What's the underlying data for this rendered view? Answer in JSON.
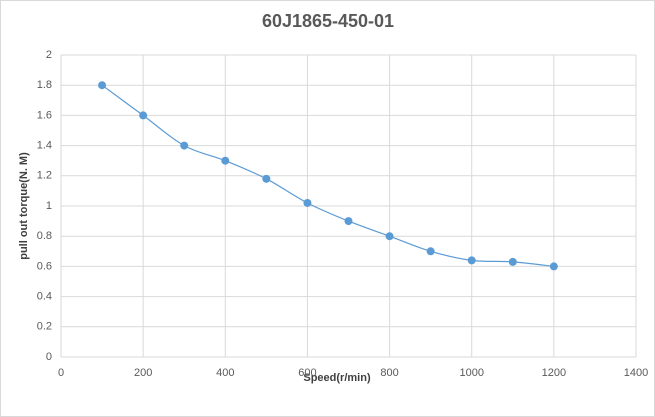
{
  "chart_data": {
    "type": "line",
    "title": "60J1865-450-01",
    "x_label": "Speed(r/min)",
    "y_label": "pull out torque(N. M)",
    "x": [
      100,
      200,
      300,
      400,
      500,
      600,
      700,
      800,
      900,
      1000,
      1100,
      1200
    ],
    "series": [
      {
        "name": "pull out torque",
        "color": "#5b9bd5",
        "values": [
          1.8,
          1.6,
          1.4,
          1.3,
          1.18,
          1.02,
          0.9,
          0.8,
          0.7,
          0.64,
          0.63,
          0.6
        ]
      }
    ],
    "xlim": [
      0,
      1400
    ],
    "xticks": [
      0,
      200,
      400,
      600,
      800,
      1000,
      1200,
      1400
    ],
    "ylim": [
      0,
      2
    ],
    "yticks": [
      0,
      0.2,
      0.4,
      0.6,
      0.8,
      1,
      1.2,
      1.4,
      1.6,
      1.8,
      2
    ],
    "grid": true,
    "smooth": true
  }
}
